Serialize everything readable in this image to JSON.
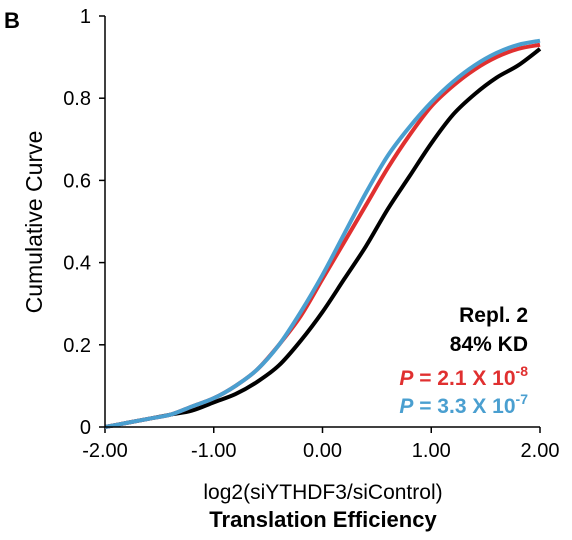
{
  "panel_label": "B",
  "chart_data": {
    "type": "line",
    "xlabel": "log2(siYTHDF3/siControl)",
    "xlabel2": "Translation Efficiency",
    "ylabel": "Cumulative Curve",
    "xlim": [
      -2.0,
      2.0
    ],
    "ylim": [
      0,
      1
    ],
    "x_ticks": [
      "-2.00",
      "-1.00",
      "0.00",
      "1.00",
      "2.00"
    ],
    "y_ticks": [
      "0",
      "0.2",
      "0.4",
      "0.6",
      "0.8",
      "1"
    ],
    "grid": false,
    "series": [
      {
        "color": "#000000",
        "x": [
          -2.0,
          -1.8,
          -1.6,
          -1.4,
          -1.2,
          -1.0,
          -0.8,
          -0.6,
          -0.4,
          -0.2,
          0.0,
          0.2,
          0.4,
          0.6,
          0.8,
          1.0,
          1.2,
          1.4,
          1.6,
          1.8,
          2.0
        ],
        "y": [
          0.0,
          0.01,
          0.02,
          0.03,
          0.04,
          0.06,
          0.08,
          0.11,
          0.15,
          0.21,
          0.28,
          0.36,
          0.44,
          0.53,
          0.61,
          0.69,
          0.76,
          0.81,
          0.85,
          0.88,
          0.92
        ]
      },
      {
        "color": "#e03030",
        "x": [
          -2.0,
          -1.8,
          -1.6,
          -1.4,
          -1.2,
          -1.0,
          -0.8,
          -0.6,
          -0.4,
          -0.2,
          0.0,
          0.2,
          0.4,
          0.6,
          0.8,
          1.0,
          1.2,
          1.4,
          1.6,
          1.8,
          2.0
        ],
        "y": [
          0.0,
          0.01,
          0.02,
          0.03,
          0.05,
          0.07,
          0.1,
          0.14,
          0.2,
          0.27,
          0.36,
          0.45,
          0.54,
          0.63,
          0.71,
          0.78,
          0.83,
          0.87,
          0.9,
          0.92,
          0.93
        ]
      },
      {
        "color": "#4a9fd0",
        "x": [
          -2.0,
          -1.8,
          -1.6,
          -1.4,
          -1.2,
          -1.0,
          -0.8,
          -0.6,
          -0.4,
          -0.2,
          0.0,
          0.2,
          0.4,
          0.6,
          0.8,
          1.0,
          1.2,
          1.4,
          1.6,
          1.8,
          2.0
        ],
        "y": [
          0.0,
          0.01,
          0.02,
          0.03,
          0.05,
          0.07,
          0.1,
          0.14,
          0.2,
          0.28,
          0.37,
          0.47,
          0.57,
          0.66,
          0.73,
          0.79,
          0.84,
          0.88,
          0.91,
          0.93,
          0.94
        ]
      }
    ],
    "annotations": {
      "repl": "Repl. 2",
      "kd": "84% KD",
      "p_red": {
        "prefix": "P",
        "text": " = 2.1 X 10",
        "exp": "-8",
        "color": "#e03030"
      },
      "p_blue": {
        "prefix": "P",
        "text": " = 3.3 X 10",
        "exp": "-7",
        "color": "#4a9fd0"
      }
    }
  }
}
